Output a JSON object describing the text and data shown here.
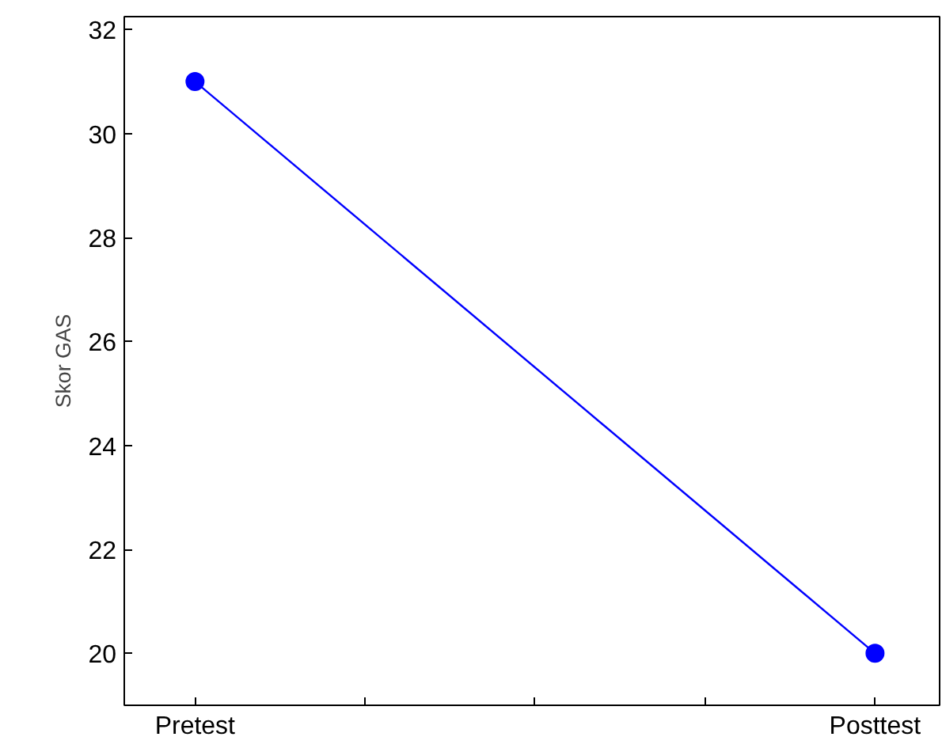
{
  "chart_data": {
    "type": "line",
    "ylabel": "Skor GAS",
    "categories": [
      "Pretest",
      "Posttest"
    ],
    "ylim": [
      19,
      32.25
    ],
    "yticks": [
      20,
      22,
      24,
      26,
      28,
      30,
      32
    ],
    "series": [
      {
        "color": "#0000ff",
        "values": [
          31,
          20
        ]
      }
    ],
    "marker": "circle",
    "line_style": "solid",
    "grid": false
  }
}
